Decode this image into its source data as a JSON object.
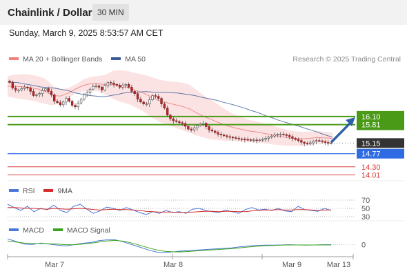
{
  "header": {
    "title": "Chainlink / Dollar",
    "timeframe": "30 MIN"
  },
  "timestamp": "Sunday, March 9, 2025 8:53:57 AM CET",
  "credit": "Research © 2025 Trading Central",
  "colors": {
    "bollinger": "#f28080",
    "ma50": "#3a5a98",
    "resistance": "#4a9a17",
    "support": "#2f6be3",
    "target": "#d63a3a",
    "price": "#333333",
    "arrow": "#2f5fa8",
    "rsi": "#4a78d6",
    "rsi_ma": "#d62b2b",
    "macd": "#4a78d6",
    "macd_signal": "#3aa41a"
  },
  "icons": {
    "trend_arrow": "arrow-up-right-icon"
  },
  "chart_data": [
    {
      "type": "candlestick",
      "legend": [
        {
          "label": "MA 20 + Bollinger Bands"
        },
        {
          "label": "MA 50"
        }
      ],
      "ylim": [
        13.8,
        17.9
      ],
      "x_ticks": [
        "Mar 7",
        "Mar 8",
        "Mar 9",
        "Mar 13"
      ],
      "closes": [
        17.32,
        17.12,
        17.05,
        17.05,
        17.1,
        17.15,
        17.12,
        17.0,
        16.85,
        16.88,
        16.92,
        17.03,
        17.1,
        17.0,
        16.88,
        16.65,
        16.6,
        16.52,
        16.62,
        16.75,
        16.65,
        16.5,
        16.45,
        16.58,
        16.72,
        16.88,
        16.95,
        17.08,
        17.18,
        17.2,
        17.15,
        17.05,
        17.2,
        17.32,
        17.3,
        17.25,
        17.22,
        17.15,
        17.22,
        17.25,
        17.15,
        17.0,
        16.92,
        16.72,
        16.62,
        16.55,
        16.55,
        16.7,
        16.85,
        16.82,
        16.75,
        16.55,
        16.4,
        16.15,
        16.02,
        15.95,
        15.92,
        15.88,
        15.85,
        15.75,
        15.65,
        15.62,
        15.7,
        15.78,
        15.82,
        15.86,
        15.74,
        15.62,
        15.58,
        15.53,
        15.47,
        15.44,
        15.41,
        15.38,
        15.36,
        15.34,
        15.32,
        15.3,
        15.29,
        15.28,
        15.27,
        15.26,
        15.26,
        15.25,
        15.26,
        15.28,
        15.32,
        15.36,
        15.4,
        15.44,
        15.46,
        15.47,
        15.45,
        15.42,
        15.38,
        15.32,
        15.28,
        15.24,
        15.18,
        15.14,
        15.12,
        15.16,
        15.22,
        15.24,
        15.23,
        15.2,
        15.17,
        15.15,
        15.15
      ],
      "ma50": [
        17.34,
        17.33,
        17.31,
        17.27,
        17.24,
        17.2,
        17.16,
        17.14,
        17.13,
        17.1,
        17.06,
        17.03,
        16.96,
        16.92,
        16.88,
        16.85,
        16.83,
        16.81,
        16.82,
        16.86,
        16.89,
        16.94,
        16.96,
        16.97,
        16.98,
        16.99,
        16.98,
        16.97,
        16.97,
        16.96,
        16.95,
        16.94,
        16.91,
        16.88,
        16.85,
        16.8,
        16.76,
        16.72,
        16.68,
        16.62,
        16.57,
        16.52,
        16.46,
        16.4,
        16.33,
        16.27,
        16.2,
        16.12,
        16.06,
        15.98,
        15.92,
        15.86,
        15.8,
        15.75,
        15.68,
        15.62,
        15.56,
        15.49,
        15.42,
        15.36
      ],
      "bollinger": {
        "upper": [
          17.55,
          17.6,
          17.62,
          17.6,
          17.55,
          17.45,
          17.2,
          17.08,
          17.12,
          17.25,
          17.42,
          17.52,
          17.55,
          17.6,
          17.75,
          17.76,
          17.72,
          17.65,
          17.6,
          17.52,
          17.42,
          17.38,
          17.35,
          17.32,
          17.25,
          17.05,
          16.85,
          16.7,
          16.5,
          16.32,
          16.18,
          16.08,
          15.98,
          15.92,
          15.85,
          15.78,
          15.7,
          15.62,
          15.57,
          15.55,
          15.56,
          15.58,
          15.55,
          15.52
        ],
        "lower": [
          16.82,
          16.76,
          16.72,
          16.68,
          16.62,
          16.55,
          16.5,
          16.58,
          16.75,
          16.92,
          17.0,
          17.03,
          17.0,
          16.88,
          16.72,
          16.62,
          16.55,
          16.42,
          16.28,
          16.08,
          15.92,
          15.82,
          15.72,
          15.62,
          15.52,
          15.42,
          15.34,
          15.28,
          15.25,
          15.23,
          15.22,
          15.2,
          15.18,
          15.17,
          15.14,
          15.1,
          15.08,
          15.06,
          15.05,
          15.05,
          15.08,
          15.12,
          15.12,
          15.12
        ]
      },
      "levels": [
        {
          "value": 16.1,
          "label": "16.10",
          "type": "resistance"
        },
        {
          "value": 15.81,
          "label": "15.81",
          "type": "resistance"
        },
        {
          "value": 15.15,
          "label": "15.15",
          "type": "price"
        },
        {
          "value": 14.77,
          "label": "14.77",
          "type": "support"
        },
        {
          "value": 14.3,
          "label": "14.30",
          "type": "target"
        },
        {
          "value": 14.01,
          "label": "14.01",
          "type": "target"
        }
      ]
    },
    {
      "type": "line",
      "legend": [
        {
          "label": "RSI"
        },
        {
          "label": "9MA"
        }
      ],
      "ylim": [
        25,
        75
      ],
      "y_ticks": [
        {
          "value": 70,
          "label": "70"
        },
        {
          "value": 50,
          "label": "50"
        },
        {
          "value": 30,
          "label": "30"
        }
      ],
      "series": [
        {
          "name": "RSI",
          "values": [
            60,
            52,
            45,
            55,
            42,
            50,
            47,
            58,
            45,
            40,
            55,
            60,
            48,
            38,
            44,
            53,
            50,
            45,
            52,
            46,
            40,
            35,
            42,
            38,
            45,
            40,
            42,
            38,
            48,
            50,
            45,
            42,
            40,
            46,
            42,
            38,
            47,
            52,
            46,
            48,
            45,
            50,
            44,
            42,
            55,
            47,
            45,
            43,
            50,
            45
          ]
        },
        {
          "name": "9MA",
          "values": [
            52,
            52,
            51,
            50,
            50,
            49,
            48,
            50,
            49,
            48,
            49,
            50,
            49,
            47,
            46,
            47,
            48,
            47,
            47,
            46,
            45,
            43,
            42,
            41,
            41,
            41,
            40,
            40,
            41,
            42,
            43,
            43,
            42,
            43,
            43,
            42,
            42,
            44,
            45,
            46,
            46,
            47,
            46,
            46,
            47,
            47,
            46,
            45,
            46,
            46
          ]
        }
      ]
    },
    {
      "type": "line",
      "legend": [
        {
          "label": "MACD"
        },
        {
          "label": "MACD Signal"
        }
      ],
      "ylim": [
        -0.4,
        0.3
      ],
      "y_ticks": [
        {
          "value": 0,
          "label": "0"
        }
      ],
      "series": [
        {
          "name": "MACD",
          "values": [
            0.22,
            0.12,
            0.02,
            0.01,
            0.06,
            0.02,
            -0.02,
            -0.05,
            0.0,
            0.05,
            0.08,
            0.15,
            0.18,
            0.18,
            0.1,
            0.0,
            -0.1,
            -0.2,
            -0.28,
            -0.3,
            -0.27,
            -0.24,
            -0.22,
            -0.2,
            -0.18,
            -0.16,
            -0.14,
            -0.12,
            -0.08,
            -0.05,
            -0.03,
            -0.02,
            -0.02,
            -0.01,
            0.0,
            -0.01,
            -0.02,
            -0.01,
            0.0,
            0.0
          ]
        },
        {
          "name": "MACD Signal",
          "values": [
            0.14,
            0.1,
            0.06,
            0.04,
            0.04,
            0.03,
            0.02,
            0.0,
            0.0,
            0.02,
            0.05,
            0.1,
            0.14,
            0.16,
            0.13,
            0.06,
            -0.03,
            -0.12,
            -0.2,
            -0.25,
            -0.27,
            -0.27,
            -0.25,
            -0.23,
            -0.21,
            -0.19,
            -0.17,
            -0.15,
            -0.12,
            -0.09,
            -0.06,
            -0.04,
            -0.03,
            -0.02,
            -0.01,
            -0.01,
            -0.01,
            -0.01,
            -0.01,
            -0.01
          ]
        }
      ]
    }
  ]
}
